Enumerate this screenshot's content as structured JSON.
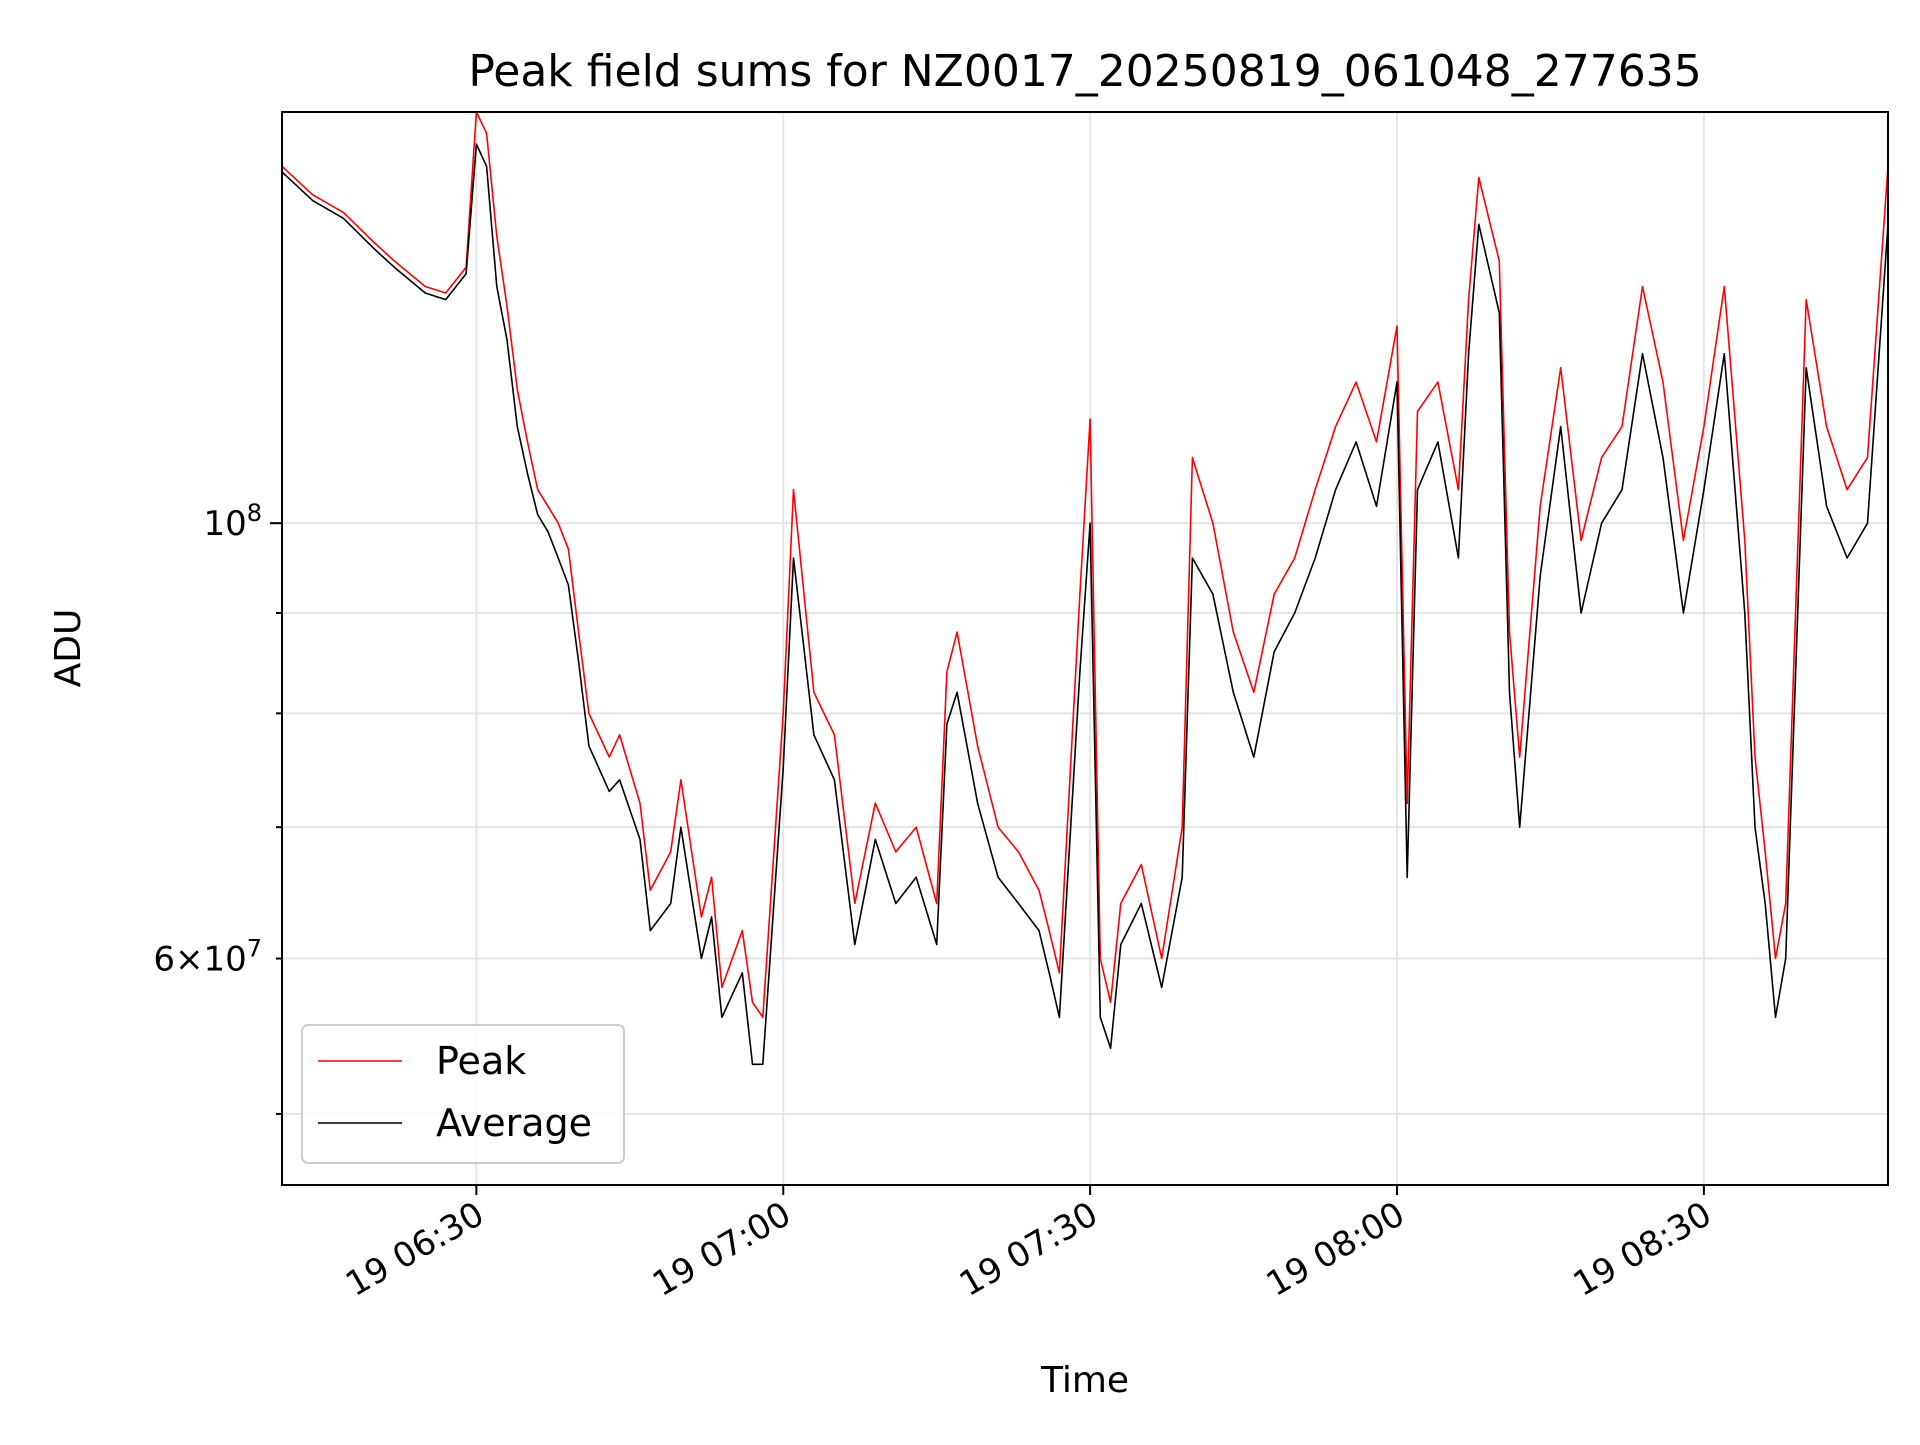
{
  "chart_data": {
    "type": "line",
    "title": "Peak field sums for NZ0017_20250819_061048_277635",
    "xlabel": "Time",
    "ylabel": "ADU",
    "y_scale": "log",
    "ylim": [
      46000000,
      162000000
    ],
    "xlim": [
      "2025-08-19 06:11",
      "2025-08-19 08:48"
    ],
    "x_tick_labels": [
      "19 06:30",
      "19 07:00",
      "19 07:30",
      "19 08:00",
      "19 08:30"
    ],
    "x_tick_times": [
      "2025-08-19 06:30",
      "2025-08-19 07:00",
      "2025-08-19 07:30",
      "2025-08-19 08:00",
      "2025-08-19 08:30"
    ],
    "y_tick_major": [
      {
        "value": 100000000,
        "mantissa": "",
        "base": "10",
        "exp": "8"
      }
    ],
    "y_tick_minor": [
      {
        "value": 60000000,
        "mantissa": "6",
        "base": "10",
        "exp": "7"
      }
    ],
    "y_grid_values": [
      50000000,
      60000000,
      70000000,
      80000000,
      90000000,
      100000000
    ],
    "grid": true,
    "legend_position": "lower-left",
    "series": [
      {
        "name": "Peak",
        "color": "#ff0000",
        "x": [
          "2025-08-19 06:11",
          "2025-08-19 06:14",
          "2025-08-19 06:17",
          "2025-08-19 06:20",
          "2025-08-19 06:22",
          "2025-08-19 06:25",
          "2025-08-19 06:27",
          "2025-08-19 06:29",
          "2025-08-19 06:30",
          "2025-08-19 06:31",
          "2025-08-19 06:32",
          "2025-08-19 06:33",
          "2025-08-19 06:34",
          "2025-08-19 06:35",
          "2025-08-19 06:36",
          "2025-08-19 06:37",
          "2025-08-19 06:38",
          "2025-08-19 06:39",
          "2025-08-19 06:40",
          "2025-08-19 06:41",
          "2025-08-19 06:43",
          "2025-08-19 06:44",
          "2025-08-19 06:46",
          "2025-08-19 06:47",
          "2025-08-19 06:49",
          "2025-08-19 06:50",
          "2025-08-19 06:52",
          "2025-08-19 06:53",
          "2025-08-19 06:54",
          "2025-08-19 06:56",
          "2025-08-19 06:57",
          "2025-08-19 06:58",
          "2025-08-19 07:00",
          "2025-08-19 07:01",
          "2025-08-19 07:03",
          "2025-08-19 07:05",
          "2025-08-19 07:07",
          "2025-08-19 07:09",
          "2025-08-19 07:11",
          "2025-08-19 07:13",
          "2025-08-19 07:15",
          "2025-08-19 07:16",
          "2025-08-19 07:17",
          "2025-08-19 07:19",
          "2025-08-19 07:21",
          "2025-08-19 07:23",
          "2025-08-19 07:25",
          "2025-08-19 07:26",
          "2025-08-19 07:27",
          "2025-08-19 07:29",
          "2025-08-19 07:30",
          "2025-08-19 07:31",
          "2025-08-19 07:32",
          "2025-08-19 07:33",
          "2025-08-19 07:35",
          "2025-08-19 07:37",
          "2025-08-19 07:39",
          "2025-08-19 07:40",
          "2025-08-19 07:42",
          "2025-08-19 07:44",
          "2025-08-19 07:46",
          "2025-08-19 07:48",
          "2025-08-19 07:50",
          "2025-08-19 07:52",
          "2025-08-19 07:54",
          "2025-08-19 07:56",
          "2025-08-19 07:58",
          "2025-08-19 08:00",
          "2025-08-19 08:01",
          "2025-08-19 08:02",
          "2025-08-19 08:04",
          "2025-08-19 08:06",
          "2025-08-19 08:07",
          "2025-08-19 08:08",
          "2025-08-19 08:10",
          "2025-08-19 08:11",
          "2025-08-19 08:12",
          "2025-08-19 08:14",
          "2025-08-19 08:16",
          "2025-08-19 08:18",
          "2025-08-19 08:20",
          "2025-08-19 08:22",
          "2025-08-19 08:24",
          "2025-08-19 08:26",
          "2025-08-19 08:28",
          "2025-08-19 08:30",
          "2025-08-19 08:32",
          "2025-08-19 08:34",
          "2025-08-19 08:35",
          "2025-08-19 08:36",
          "2025-08-19 08:37",
          "2025-08-19 08:38",
          "2025-08-19 08:40",
          "2025-08-19 08:42",
          "2025-08-19 08:44",
          "2025-08-19 08:46",
          "2025-08-19 08:48"
        ],
        "values": [
          152000000,
          147000000,
          144000000,
          139000000,
          136000000,
          132000000,
          131000000,
          135000000,
          162000000,
          158000000,
          140000000,
          129000000,
          117000000,
          110000000,
          104000000,
          102000000,
          100000000,
          97000000,
          88000000,
          80000000,
          76000000,
          78000000,
          72000000,
          65000000,
          68000000,
          74000000,
          63000000,
          66000000,
          58000000,
          62000000,
          57000000,
          56000000,
          80000000,
          104000000,
          82000000,
          78000000,
          64000000,
          72000000,
          68000000,
          70000000,
          64000000,
          84000000,
          88000000,
          77000000,
          70000000,
          68000000,
          65000000,
          62000000,
          59000000,
          92000000,
          113000000,
          60000000,
          57000000,
          64000000,
          67000000,
          60000000,
          70000000,
          108000000,
          100000000,
          88000000,
          82000000,
          92000000,
          96000000,
          104000000,
          112000000,
          118000000,
          110000000,
          126000000,
          72000000,
          114000000,
          118000000,
          104000000,
          130000000,
          150000000,
          136000000,
          88000000,
          76000000,
          102000000,
          120000000,
          98000000,
          108000000,
          112000000,
          132000000,
          118000000,
          98000000,
          112000000,
          132000000,
          98000000,
          76000000,
          68000000,
          60000000,
          64000000,
          130000000,
          112000000,
          104000000,
          108000000,
          152000000
        ]
      },
      {
        "name": "Average",
        "color": "#000000",
        "x": [
          "2025-08-19 06:11",
          "2025-08-19 06:14",
          "2025-08-19 06:17",
          "2025-08-19 06:20",
          "2025-08-19 06:22",
          "2025-08-19 06:25",
          "2025-08-19 06:27",
          "2025-08-19 06:29",
          "2025-08-19 06:30",
          "2025-08-19 06:31",
          "2025-08-19 06:32",
          "2025-08-19 06:33",
          "2025-08-19 06:34",
          "2025-08-19 06:35",
          "2025-08-19 06:36",
          "2025-08-19 06:37",
          "2025-08-19 06:38",
          "2025-08-19 06:39",
          "2025-08-19 06:40",
          "2025-08-19 06:41",
          "2025-08-19 06:43",
          "2025-08-19 06:44",
          "2025-08-19 06:46",
          "2025-08-19 06:47",
          "2025-08-19 06:49",
          "2025-08-19 06:50",
          "2025-08-19 06:52",
          "2025-08-19 06:53",
          "2025-08-19 06:54",
          "2025-08-19 06:56",
          "2025-08-19 06:57",
          "2025-08-19 06:58",
          "2025-08-19 07:00",
          "2025-08-19 07:01",
          "2025-08-19 07:03",
          "2025-08-19 07:05",
          "2025-08-19 07:07",
          "2025-08-19 07:09",
          "2025-08-19 07:11",
          "2025-08-19 07:13",
          "2025-08-19 07:15",
          "2025-08-19 07:16",
          "2025-08-19 07:17",
          "2025-08-19 07:19",
          "2025-08-19 07:21",
          "2025-08-19 07:23",
          "2025-08-19 07:25",
          "2025-08-19 07:26",
          "2025-08-19 07:27",
          "2025-08-19 07:29",
          "2025-08-19 07:30",
          "2025-08-19 07:31",
          "2025-08-19 07:32",
          "2025-08-19 07:33",
          "2025-08-19 07:35",
          "2025-08-19 07:37",
          "2025-08-19 07:39",
          "2025-08-19 07:40",
          "2025-08-19 07:42",
          "2025-08-19 07:44",
          "2025-08-19 07:46",
          "2025-08-19 07:48",
          "2025-08-19 07:50",
          "2025-08-19 07:52",
          "2025-08-19 07:54",
          "2025-08-19 07:56",
          "2025-08-19 07:58",
          "2025-08-19 08:00",
          "2025-08-19 08:01",
          "2025-08-19 08:02",
          "2025-08-19 08:04",
          "2025-08-19 08:06",
          "2025-08-19 08:07",
          "2025-08-19 08:08",
          "2025-08-19 08:10",
          "2025-08-19 08:11",
          "2025-08-19 08:12",
          "2025-08-19 08:14",
          "2025-08-19 08:16",
          "2025-08-19 08:18",
          "2025-08-19 08:20",
          "2025-08-19 08:22",
          "2025-08-19 08:24",
          "2025-08-19 08:26",
          "2025-08-19 08:28",
          "2025-08-19 08:30",
          "2025-08-19 08:32",
          "2025-08-19 08:34",
          "2025-08-19 08:35",
          "2025-08-19 08:36",
          "2025-08-19 08:37",
          "2025-08-19 08:38",
          "2025-08-19 08:40",
          "2025-08-19 08:42",
          "2025-08-19 08:44",
          "2025-08-19 08:46",
          "2025-08-19 08:48"
        ],
        "values": [
          151000000,
          146000000,
          143000000,
          138000000,
          135000000,
          131000000,
          130000000,
          134000000,
          156000000,
          152000000,
          132000000,
          124000000,
          112000000,
          106000000,
          101000000,
          99000000,
          96000000,
          93000000,
          85000000,
          77000000,
          73000000,
          74000000,
          69000000,
          62000000,
          64000000,
          70000000,
          60000000,
          63000000,
          56000000,
          59000000,
          53000000,
          53000000,
          75000000,
          96000000,
          78000000,
          74000000,
          61000000,
          69000000,
          64000000,
          66000000,
          61000000,
          79000000,
          82000000,
          72000000,
          66000000,
          64000000,
          62000000,
          59000000,
          56000000,
          84000000,
          100000000,
          56000000,
          54000000,
          61000000,
          64000000,
          58000000,
          66000000,
          96000000,
          92000000,
          82000000,
          76000000,
          86000000,
          90000000,
          96000000,
          104000000,
          110000000,
          102000000,
          118000000,
          66000000,
          104000000,
          110000000,
          96000000,
          122000000,
          142000000,
          128000000,
          82000000,
          70000000,
          94000000,
          112000000,
          90000000,
          100000000,
          104000000,
          122000000,
          108000000,
          90000000,
          104000000,
          122000000,
          90000000,
          70000000,
          64000000,
          56000000,
          60000000,
          120000000,
          102000000,
          96000000,
          100000000,
          142000000
        ]
      }
    ]
  }
}
